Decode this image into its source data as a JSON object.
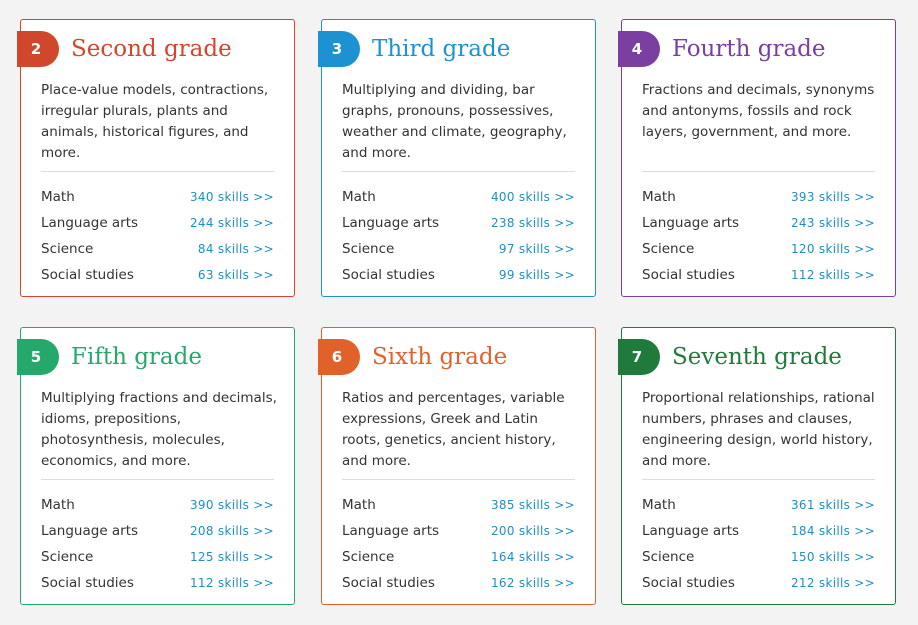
{
  "grades": [
    {
      "number": "2",
      "title": "Second grade",
      "color": "#d0472c",
      "description": "Place-value models, contractions, irregular plurals, plants and animals, historical figures, and more.",
      "subjects": [
        {
          "name": "Math",
          "skills": "340 skills >>"
        },
        {
          "name": "Language arts",
          "skills": "244 skills >>"
        },
        {
          "name": "Science",
          "skills": "84 skills >>"
        },
        {
          "name": "Social studies",
          "skills": "63 skills >>"
        }
      ]
    },
    {
      "number": "3",
      "title": "Third grade",
      "color": "#1c92d2",
      "description": "Multiplying and dividing, bar graphs, pronouns, possessives, weather and climate, geography, and more.",
      "subjects": [
        {
          "name": "Math",
          "skills": "400 skills >>"
        },
        {
          "name": "Language arts",
          "skills": "238 skills >>"
        },
        {
          "name": "Science",
          "skills": "97 skills >>"
        },
        {
          "name": "Social studies",
          "skills": "99 skills >>"
        }
      ]
    },
    {
      "number": "4",
      "title": "Fourth grade",
      "color": "#7b3ea1",
      "description": "Fractions and decimals, synonyms and antonyms, fossils and rock layers, government, and more.",
      "subjects": [
        {
          "name": "Math",
          "skills": "393 skills >>"
        },
        {
          "name": "Language arts",
          "skills": "243 skills >>"
        },
        {
          "name": "Science",
          "skills": "120 skills >>"
        },
        {
          "name": "Social studies",
          "skills": "112 skills >>"
        }
      ]
    },
    {
      "number": "5",
      "title": "Fifth grade",
      "color": "#25a96a",
      "description": "Multiplying fractions and decimals, idioms, prepositions, photosynthesis, molecules, economics, and more.",
      "subjects": [
        {
          "name": "Math",
          "skills": "390 skills >>"
        },
        {
          "name": "Language arts",
          "skills": "208 skills >>"
        },
        {
          "name": "Science",
          "skills": "125 skills >>"
        },
        {
          "name": "Social studies",
          "skills": "112 skills >>"
        }
      ]
    },
    {
      "number": "6",
      "title": "Sixth grade",
      "color": "#e0622a",
      "description": "Ratios and percentages, variable expressions, Greek and Latin roots, genetics, ancient history, and more.",
      "subjects": [
        {
          "name": "Math",
          "skills": "385 skills >>"
        },
        {
          "name": "Language arts",
          "skills": "200 skills >>"
        },
        {
          "name": "Science",
          "skills": "164 skills >>"
        },
        {
          "name": "Social studies",
          "skills": "162 skills >>"
        }
      ]
    },
    {
      "number": "7",
      "title": "Seventh grade",
      "color": "#1f7a3c",
      "description": "Proportional relationships, rational numbers, phrases and clauses, engineering design, world history, and more.",
      "subjects": [
        {
          "name": "Math",
          "skills": "361 skills >>"
        },
        {
          "name": "Language arts",
          "skills": "184 skills >>"
        },
        {
          "name": "Science",
          "skills": "150 skills >>"
        },
        {
          "name": "Social studies",
          "skills": "212 skills >>"
        }
      ]
    }
  ]
}
